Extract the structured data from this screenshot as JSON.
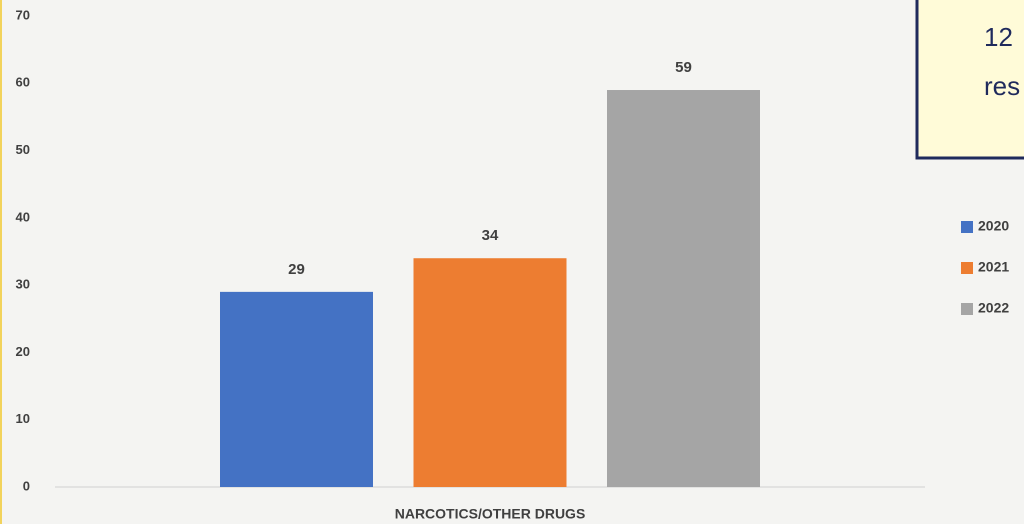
{
  "chart_data": {
    "type": "bar",
    "categories": [
      "NARCOTICS/OTHER DRUGS"
    ],
    "series": [
      {
        "name": "2020",
        "color": "#4472c4",
        "values": [
          29
        ]
      },
      {
        "name": "2021",
        "color": "#ed7d31",
        "values": [
          34
        ]
      },
      {
        "name": "2022",
        "color": "#a5a5a5",
        "values": [
          59
        ]
      }
    ],
    "ylim": [
      0,
      70
    ],
    "yticks": [
      0,
      10,
      20,
      30,
      40,
      50,
      60,
      70
    ],
    "grid": false,
    "legend": "right"
  },
  "textbox": {
    "lines": [
      "12",
      "res"
    ]
  }
}
